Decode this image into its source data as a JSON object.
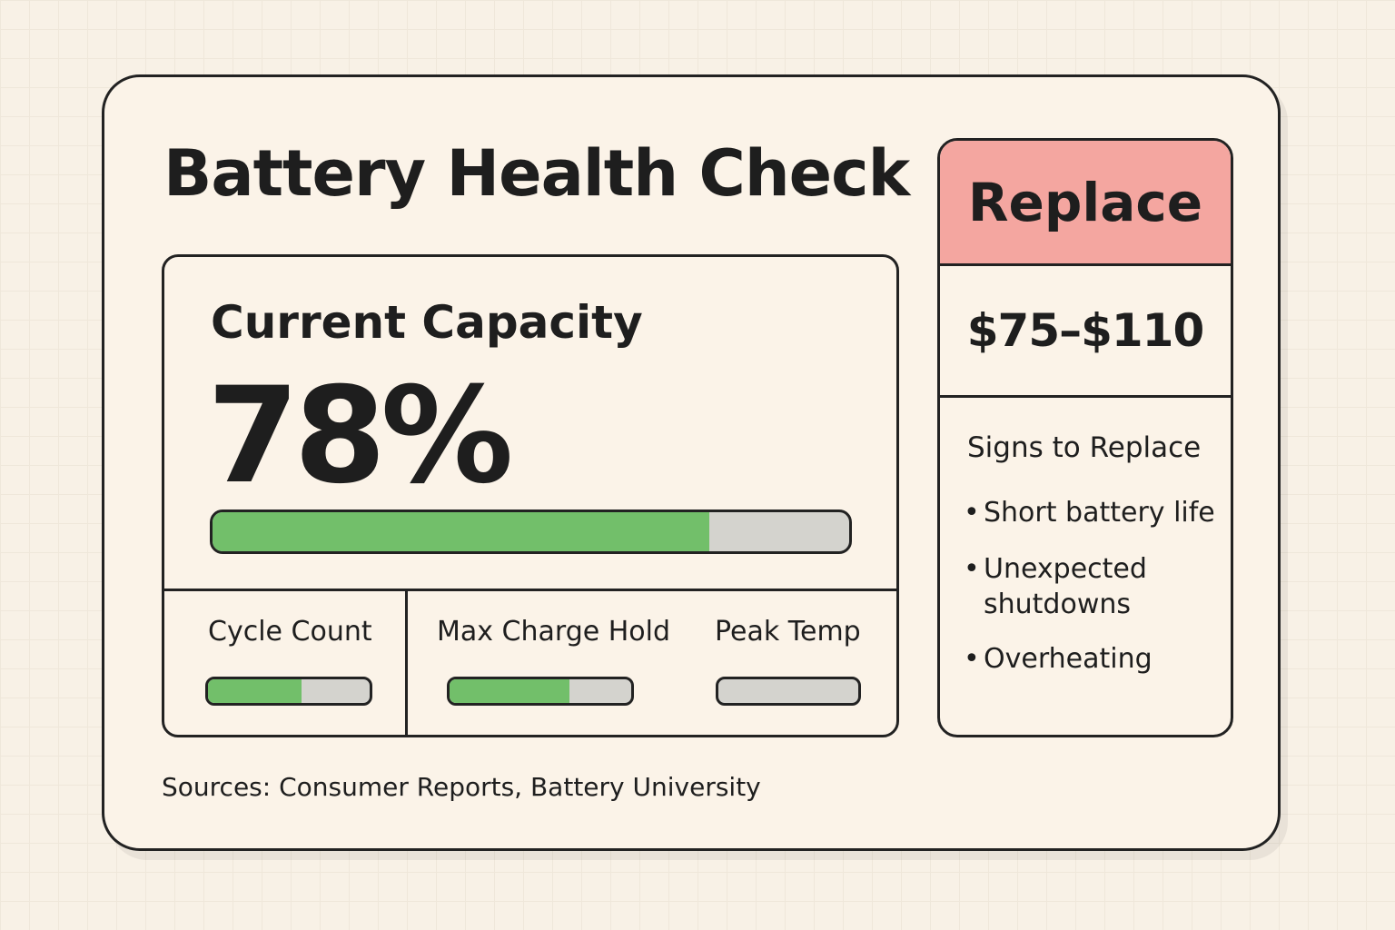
{
  "header": {
    "title": "Battery Health Check"
  },
  "capacity": {
    "label": "Current Capacity",
    "value": 78,
    "value_label": "78%"
  },
  "metrics": [
    {
      "label": "Cycle Count",
      "value": 58
    },
    {
      "label": "Max Charge Hold",
      "value": 66
    },
    {
      "label": "Peak Temp",
      "value": 0
    }
  ],
  "recommendation": {
    "title": "Replace",
    "cost": "$75–$110",
    "signs_title": "Signs to Replace",
    "signs": [
      "Short battery life",
      "Unexpected shutdowns",
      "Overheating"
    ]
  },
  "footer": {
    "sources": "Sources: Consumer Reports, Battery University"
  }
}
